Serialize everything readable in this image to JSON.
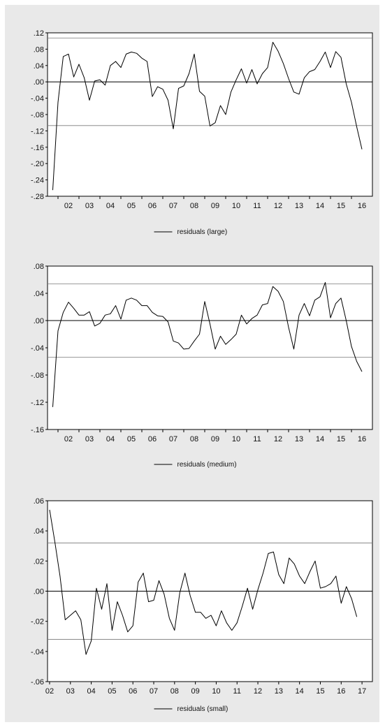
{
  "chart_data": [
    {
      "type": "line",
      "series": [
        {
          "name": "residuals (large)",
          "values": [
            -0.265,
            -0.05,
            0.062,
            0.068,
            0.012,
            0.043,
            0.01,
            -0.045,
            0.002,
            0.005,
            -0.008,
            0.04,
            0.05,
            0.035,
            0.068,
            0.073,
            0.07,
            0.058,
            0.05,
            -0.036,
            -0.012,
            -0.018,
            -0.045,
            -0.115,
            -0.016,
            -0.01,
            0.02,
            0.068,
            -0.023,
            -0.035,
            -0.108,
            -0.1,
            -0.058,
            -0.08,
            -0.025,
            0.005,
            0.032,
            -0.003,
            0.03,
            -0.005,
            0.02,
            0.035,
            0.097,
            0.075,
            0.045,
            0.008,
            -0.025,
            -0.03,
            0.01,
            0.025,
            0.03,
            0.05,
            0.073,
            0.035,
            0.074,
            0.06,
            -0.005,
            -0.05,
            -0.11,
            -0.165
          ]
        }
      ],
      "x_start": 2001.75,
      "x_step": 0.25,
      "x_ticks": [
        "02",
        "03",
        "04",
        "05",
        "06",
        "07",
        "08",
        "09",
        "10",
        "11",
        "12",
        "13",
        "14",
        "15",
        "16"
      ],
      "y_ticks": [
        ".12",
        ".08",
        ".04",
        ".00",
        "-.04",
        "-.08",
        "-.12",
        "-.16",
        "-.20",
        "-.24",
        "-.28"
      ],
      "ylim": [
        -0.28,
        0.12
      ],
      "bands": [
        0.107,
        -0.107
      ],
      "legend": "residuals (large)"
    },
    {
      "type": "line",
      "series": [
        {
          "name": "residuals (medium)",
          "values": [
            -0.127,
            -0.015,
            0.012,
            0.027,
            0.018,
            0.008,
            0.008,
            0.013,
            -0.008,
            -0.004,
            0.008,
            0.01,
            0.022,
            0.002,
            0.03,
            0.033,
            0.03,
            0.022,
            0.022,
            0.012,
            0.007,
            0.006,
            -0.002,
            -0.03,
            -0.033,
            -0.042,
            -0.041,
            -0.03,
            -0.02,
            0.028,
            -0.005,
            -0.042,
            -0.023,
            -0.035,
            -0.028,
            -0.02,
            0.008,
            -0.005,
            0.003,
            0.008,
            0.023,
            0.025,
            0.05,
            0.043,
            0.028,
            -0.01,
            -0.042,
            0.008,
            0.025,
            0.007,
            0.03,
            0.035,
            0.056,
            0.004,
            0.025,
            0.033,
            0.0,
            -0.038,
            -0.06,
            -0.075
          ]
        }
      ],
      "x_start": 2001.75,
      "x_step": 0.25,
      "x_ticks": [
        "02",
        "03",
        "04",
        "05",
        "06",
        "07",
        "08",
        "09",
        "10",
        "11",
        "12",
        "13",
        "14",
        "15",
        "16"
      ],
      "y_ticks": [
        ".08",
        ".04",
        ".00",
        "-.04",
        "-.08",
        "-.12",
        "-.16"
      ],
      "ylim": [
        -0.16,
        0.08
      ],
      "bands": [
        0.054,
        -0.054
      ],
      "legend": "residuals (medium)"
    },
    {
      "type": "line",
      "series": [
        {
          "name": "residuals (small)",
          "values": [
            0.054,
            0.033,
            0.01,
            -0.019,
            -0.016,
            -0.013,
            -0.019,
            -0.042,
            -0.033,
            0.002,
            -0.012,
            0.005,
            -0.026,
            -0.007,
            -0.016,
            -0.027,
            -0.023,
            0.006,
            0.012,
            -0.007,
            -0.006,
            0.007,
            -0.002,
            -0.018,
            -0.026,
            -0.001,
            0.012,
            -0.003,
            -0.014,
            -0.014,
            -0.018,
            -0.016,
            -0.023,
            -0.013,
            -0.021,
            -0.026,
            -0.021,
            -0.01,
            0.002,
            -0.012,
            0.001,
            0.012,
            0.025,
            0.026,
            0.011,
            0.005,
            0.022,
            0.018,
            0.01,
            0.005,
            0.013,
            0.02,
            0.002,
            0.003,
            0.005,
            0.01,
            -0.008,
            0.003,
            -0.005,
            -0.017
          ]
        }
      ],
      "x_start": 2002,
      "x_step": 0.25,
      "x_ticks": [
        "02",
        "03",
        "04",
        "05",
        "06",
        "07",
        "08",
        "09",
        "10",
        "11",
        "12",
        "13",
        "14",
        "15",
        "16",
        "17"
      ],
      "y_ticks": [
        ".06",
        ".04",
        ".02",
        ".00",
        "-.02",
        "-.04",
        "-.06"
      ],
      "ylim": [
        -0.06,
        0.06
      ],
      "bands": [
        0.032,
        -0.032
      ],
      "legend": "residuals (small)"
    }
  ]
}
